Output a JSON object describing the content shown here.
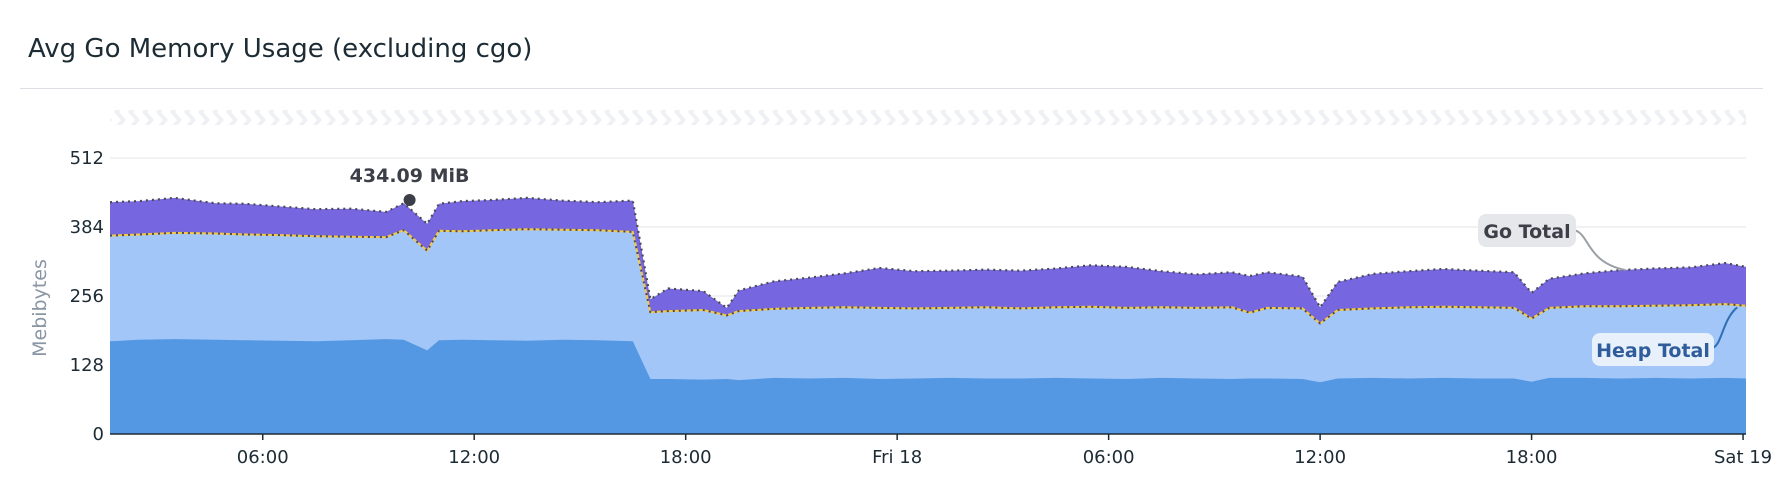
{
  "widget": {
    "title": "Avg Go Memory Usage (excluding cgo)"
  },
  "chart_data": {
    "type": "area",
    "title": "Avg Go Memory Usage (excluding cgo)",
    "xlabel": "",
    "ylabel": "Mebibytes",
    "ylim": [
      0,
      512
    ],
    "yticks": [
      0,
      128,
      256,
      384,
      512
    ],
    "grid": true,
    "x_range": [
      "2024-05-17T01:40",
      "2024-05-19T00:05"
    ],
    "x_ticks": [
      {
        "t": "2024-05-17T06:00",
        "label": "06:00"
      },
      {
        "t": "2024-05-17T12:00",
        "label": "12:00"
      },
      {
        "t": "2024-05-17T18:00",
        "label": "18:00"
      },
      {
        "t": "2024-05-18T00:00",
        "label": "Fri 18"
      },
      {
        "t": "2024-05-18T06:00",
        "label": "06:00"
      },
      {
        "t": "2024-05-18T12:00",
        "label": "12:00"
      },
      {
        "t": "2024-05-18T18:00",
        "label": "18:00"
      },
      {
        "t": "2024-05-19T00:00",
        "label": "Sat 19"
      }
    ],
    "x": [
      "2024-05-17T01:40",
      "2024-05-17T02:30",
      "2024-05-17T03:30",
      "2024-05-17T04:40",
      "2024-05-17T05:30",
      "2024-05-17T06:30",
      "2024-05-17T07:30",
      "2024-05-17T08:30",
      "2024-05-17T09:30",
      "2024-05-17T10:00",
      "2024-05-17T10:40",
      "2024-05-17T11:00",
      "2024-05-17T11:40",
      "2024-05-17T12:30",
      "2024-05-17T13:30",
      "2024-05-17T14:30",
      "2024-05-17T15:30",
      "2024-05-17T16:30",
      "2024-05-17T17:00",
      "2024-05-17T17:30",
      "2024-05-17T18:30",
      "2024-05-17T19:10",
      "2024-05-17T19:30",
      "2024-05-17T20:30",
      "2024-05-17T21:30",
      "2024-05-17T22:30",
      "2024-05-17T23:30",
      "2024-05-18T00:30",
      "2024-05-18T01:30",
      "2024-05-18T02:30",
      "2024-05-18T03:30",
      "2024-05-18T04:30",
      "2024-05-18T05:30",
      "2024-05-18T06:30",
      "2024-05-18T07:30",
      "2024-05-18T08:30",
      "2024-05-18T09:30",
      "2024-05-18T10:00",
      "2024-05-18T10:30",
      "2024-05-18T11:30",
      "2024-05-18T12:00",
      "2024-05-18T12:30",
      "2024-05-18T13:30",
      "2024-05-18T14:30",
      "2024-05-18T15:30",
      "2024-05-18T16:30",
      "2024-05-18T17:30",
      "2024-05-18T18:00",
      "2024-05-18T18:30",
      "2024-05-18T19:30",
      "2024-05-18T20:30",
      "2024-05-18T21:30",
      "2024-05-18T22:30",
      "2024-05-18T23:30",
      "2024-05-19T00:05"
    ],
    "series": [
      {
        "name": "",
        "color": "#5497e2",
        "values": [
          172,
          175,
          176,
          175,
          174,
          173,
          172,
          174,
          176,
          175,
          155,
          174,
          175,
          174,
          173,
          175,
          174,
          172,
          102,
          102,
          101,
          102,
          100,
          104,
          103,
          104,
          102,
          103,
          104,
          103,
          103,
          104,
          103,
          102,
          104,
          103,
          102,
          103,
          103,
          102,
          96,
          103,
          104,
          103,
          104,
          103,
          103,
          97,
          104,
          104,
          103,
          104,
          103,
          104,
          103
        ]
      },
      {
        "name": "Heap Total",
        "color": "#a1c6f7",
        "values": [
          368,
          370,
          373,
          372,
          370,
          369,
          367,
          366,
          365,
          378,
          340,
          377,
          376,
          378,
          380,
          379,
          378,
          375,
          226,
          228,
          230,
          220,
          228,
          232,
          234,
          235,
          234,
          233,
          234,
          235,
          233,
          235,
          236,
          234,
          235,
          234,
          235,
          225,
          234,
          233,
          205,
          230,
          233,
          235,
          236,
          235,
          234,
          214,
          234,
          237,
          237,
          238,
          239,
          241,
          238
        ]
      },
      {
        "name": "Go Total",
        "color": "#7666e0",
        "values": [
          430,
          432,
          438,
          428,
          427,
          422,
          417,
          418,
          412,
          428,
          390,
          427,
          432,
          434,
          438,
          433,
          430,
          433,
          250,
          270,
          265,
          234,
          266,
          283,
          290,
          298,
          308,
          302,
          303,
          305,
          303,
          307,
          313,
          310,
          302,
          296,
          300,
          293,
          300,
          292,
          235,
          282,
          297,
          302,
          306,
          303,
          300,
          262,
          288,
          298,
          304,
          307,
          309,
          317,
          310
        ]
      }
    ],
    "annotations": [
      {
        "label": "434.09 MiB",
        "series": "Go Total",
        "x": "2024-05-17T10:10",
        "y": 434.09
      },
      {
        "label": "Go Total",
        "series": "Go Total"
      },
      {
        "label": "Heap Total",
        "series": "Heap Total"
      }
    ]
  }
}
